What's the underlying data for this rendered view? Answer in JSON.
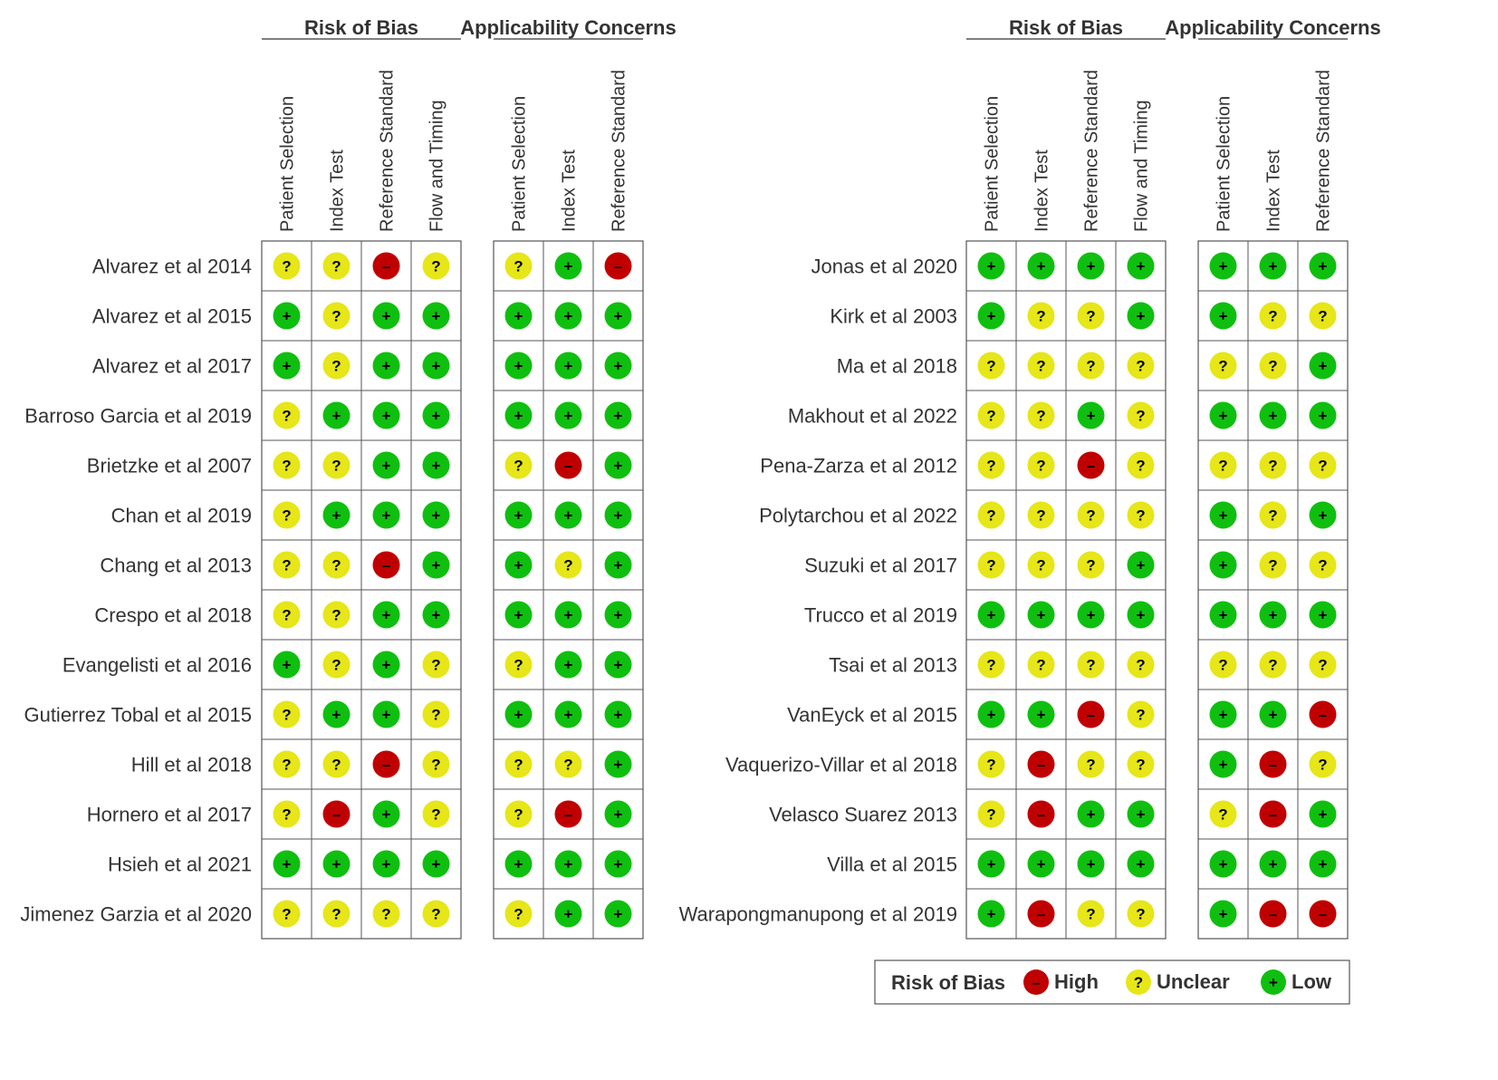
{
  "chart_data": {
    "type": "table",
    "group_titles": {
      "bias": "Risk of Bias",
      "applicability": "Applicability Concerns"
    },
    "bias_columns": [
      "Patient Selection",
      "Index Test",
      "Reference Standard",
      "Flow and Timing"
    ],
    "applicability_columns": [
      "Patient Selection",
      "Index Test",
      "Reference Standard"
    ],
    "panels": [
      {
        "studies": [
          {
            "name": "Alvarez et al 2014",
            "bias": [
              "U",
              "U",
              "H",
              "U"
            ],
            "applicability": [
              "U",
              "L",
              "H"
            ]
          },
          {
            "name": "Alvarez et al 2015",
            "bias": [
              "L",
              "U",
              "L",
              "L"
            ],
            "applicability": [
              "L",
              "L",
              "L"
            ]
          },
          {
            "name": "Alvarez et al 2017",
            "bias": [
              "L",
              "U",
              "L",
              "L"
            ],
            "applicability": [
              "L",
              "L",
              "L"
            ]
          },
          {
            "name": "Barroso Garcia et al 2019",
            "bias": [
              "U",
              "L",
              "L",
              "L"
            ],
            "applicability": [
              "L",
              "L",
              "L"
            ]
          },
          {
            "name": "Brietzke et al 2007",
            "bias": [
              "U",
              "U",
              "L",
              "L"
            ],
            "applicability": [
              "U",
              "H",
              "L"
            ]
          },
          {
            "name": "Chan et al 2019",
            "bias": [
              "U",
              "L",
              "L",
              "L"
            ],
            "applicability": [
              "L",
              "L",
              "L"
            ]
          },
          {
            "name": "Chang et al 2013",
            "bias": [
              "U",
              "U",
              "H",
              "L"
            ],
            "applicability": [
              "L",
              "U",
              "L"
            ]
          },
          {
            "name": "Crespo et al 2018",
            "bias": [
              "U",
              "U",
              "L",
              "L"
            ],
            "applicability": [
              "L",
              "L",
              "L"
            ]
          },
          {
            "name": "Evangelisti et al 2016",
            "bias": [
              "L",
              "U",
              "L",
              "U"
            ],
            "applicability": [
              "U",
              "L",
              "L"
            ]
          },
          {
            "name": "Gutierrez Tobal et al 2015",
            "bias": [
              "U",
              "L",
              "L",
              "U"
            ],
            "applicability": [
              "L",
              "L",
              "L"
            ]
          },
          {
            "name": "Hill et al 2018",
            "bias": [
              "U",
              "U",
              "H",
              "U"
            ],
            "applicability": [
              "U",
              "U",
              "L"
            ]
          },
          {
            "name": "Hornero et al 2017",
            "bias": [
              "U",
              "H",
              "L",
              "U"
            ],
            "applicability": [
              "U",
              "H",
              "L"
            ]
          },
          {
            "name": "Hsieh et al 2021",
            "bias": [
              "L",
              "L",
              "L",
              "L"
            ],
            "applicability": [
              "L",
              "L",
              "L"
            ]
          },
          {
            "name": "Jimenez Garzia et al 2020",
            "bias": [
              "U",
              "U",
              "U",
              "U"
            ],
            "applicability": [
              "U",
              "L",
              "L"
            ]
          }
        ]
      },
      {
        "studies": [
          {
            "name": "Jonas et al 2020",
            "bias": [
              "L",
              "L",
              "L",
              "L"
            ],
            "applicability": [
              "L",
              "L",
              "L"
            ]
          },
          {
            "name": "Kirk et al 2003",
            "bias": [
              "L",
              "U",
              "U",
              "L"
            ],
            "applicability": [
              "L",
              "U",
              "U"
            ]
          },
          {
            "name": "Ma et al 2018",
            "bias": [
              "U",
              "U",
              "U",
              "U"
            ],
            "applicability": [
              "U",
              "U",
              "L"
            ]
          },
          {
            "name": "Makhout et al 2022",
            "bias": [
              "U",
              "U",
              "L",
              "U"
            ],
            "applicability": [
              "L",
              "L",
              "L"
            ]
          },
          {
            "name": "Pena-Zarza et al 2012",
            "bias": [
              "U",
              "U",
              "H",
              "U"
            ],
            "applicability": [
              "U",
              "U",
              "U"
            ]
          },
          {
            "name": "Polytarchou et al 2022",
            "bias": [
              "U",
              "U",
              "U",
              "U"
            ],
            "applicability": [
              "L",
              "U",
              "L"
            ]
          },
          {
            "name": "Suzuki et al 2017",
            "bias": [
              "U",
              "U",
              "U",
              "L"
            ],
            "applicability": [
              "L",
              "U",
              "U"
            ]
          },
          {
            "name": "Trucco et al 2019",
            "bias": [
              "L",
              "L",
              "L",
              "L"
            ],
            "applicability": [
              "L",
              "L",
              "L"
            ]
          },
          {
            "name": "Tsai et al 2013",
            "bias": [
              "U",
              "U",
              "U",
              "U"
            ],
            "applicability": [
              "U",
              "U",
              "U"
            ]
          },
          {
            "name": "VanEyck et al 2015",
            "bias": [
              "L",
              "L",
              "H",
              "U"
            ],
            "applicability": [
              "L",
              "L",
              "H"
            ]
          },
          {
            "name": "Vaquerizo-Villar et al 2018",
            "bias": [
              "U",
              "H",
              "U",
              "U"
            ],
            "applicability": [
              "L",
              "H",
              "U"
            ]
          },
          {
            "name": "Velasco Suarez 2013",
            "bias": [
              "U",
              "H",
              "L",
              "L"
            ],
            "applicability": [
              "U",
              "H",
              "L"
            ]
          },
          {
            "name": "Villa et al 2015",
            "bias": [
              "L",
              "L",
              "L",
              "L"
            ],
            "applicability": [
              "L",
              "L",
              "L"
            ]
          },
          {
            "name": "Warapongmanupong et al 2019",
            "bias": [
              "L",
              "H",
              "U",
              "U"
            ],
            "applicability": [
              "L",
              "H",
              "H"
            ]
          }
        ]
      }
    ],
    "ratings": {
      "H": {
        "label": "High",
        "symbol": "–",
        "color": "#c00000"
      },
      "U": {
        "label": "Unclear",
        "symbol": "?",
        "color": "#e6e619"
      },
      "L": {
        "label": "Low",
        "symbol": "+",
        "color": "#0fbf0f"
      }
    },
    "legend": {
      "title": "Risk of Bias",
      "order": [
        "H",
        "U",
        "L"
      ]
    }
  }
}
